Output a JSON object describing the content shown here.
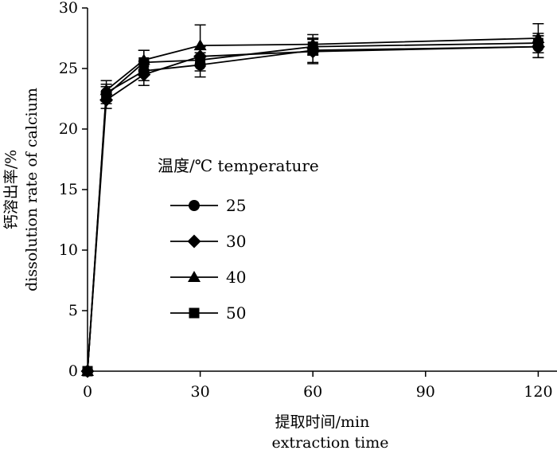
{
  "chart_data": {
    "type": "line",
    "x": [
      0,
      5,
      15,
      30,
      60,
      120
    ],
    "xticks": [
      0,
      30,
      60,
      90,
      120
    ],
    "yticks": [
      0,
      5,
      10,
      15,
      20,
      25,
      30
    ],
    "xlim": [
      0,
      125
    ],
    "ylim": [
      0,
      30
    ],
    "xlabel_cn": "提取时间/min",
    "xlabel_en": "extraction time",
    "ylabel_cn": "钙溶出率/%",
    "ylabel_en": "dissolution rate of calcium",
    "legend_title": "温度/℃ temperature",
    "legend_position": "center-left",
    "grid": false,
    "series": [
      {
        "name": "25",
        "marker": "circle",
        "values": [
          0,
          23.0,
          24.8,
          25.3,
          26.5,
          26.8
        ],
        "errors": [
          0,
          0.7,
          0.8,
          1.0,
          1.0,
          0.9
        ]
      },
      {
        "name": "30",
        "marker": "diamond",
        "values": [
          0,
          22.4,
          24.5,
          26.0,
          26.4,
          26.8
        ],
        "errors": [
          0,
          0.7,
          0.9,
          0.8,
          1.0,
          0.9
        ]
      },
      {
        "name": "40",
        "marker": "triangle",
        "values": [
          0,
          23.2,
          25.7,
          26.9,
          27.0,
          27.5
        ],
        "errors": [
          0,
          0.8,
          0.8,
          1.7,
          0.8,
          1.2
        ]
      },
      {
        "name": "50",
        "marker": "square",
        "values": [
          0,
          22.8,
          25.5,
          25.7,
          26.8,
          27.1
        ],
        "errors": [
          0,
          0.7,
          1.0,
          0.9,
          0.7,
          0.8
        ]
      }
    ]
  }
}
